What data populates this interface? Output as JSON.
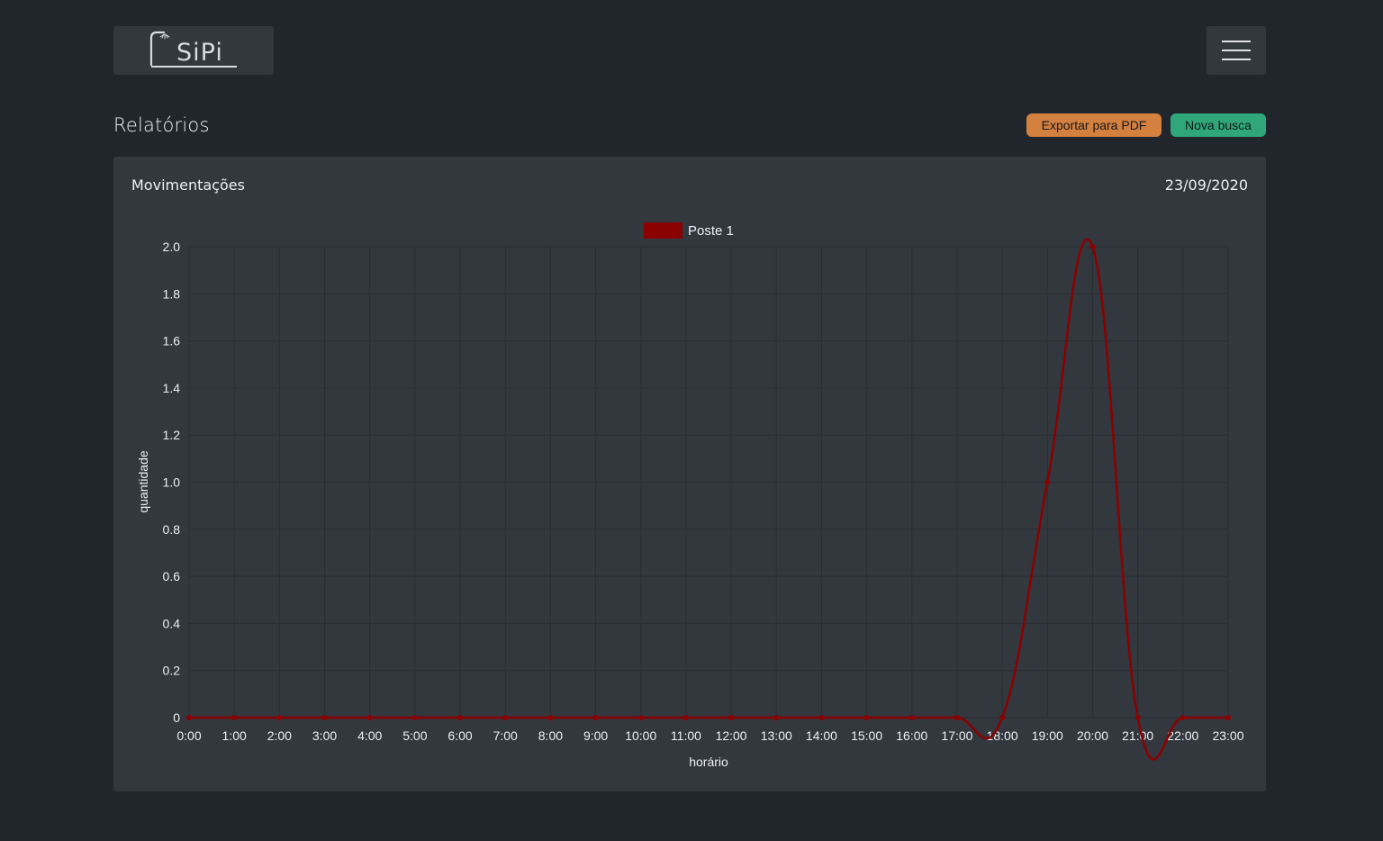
{
  "header": {
    "logo_text": "SiPi",
    "menu_icon": "hamburger-icon"
  },
  "page": {
    "title": "Relatórios"
  },
  "actions": {
    "export_label": "Exportar para PDF",
    "new_search_label": "Nova busca"
  },
  "colors": {
    "background": "#21252c",
    "card": "#33373e",
    "export_button": "#d4803e",
    "new_search_button": "#2fa77a",
    "series": "#8b0000"
  },
  "card": {
    "title": "Movimentações",
    "date": "23/09/2020"
  },
  "chart_data": {
    "type": "line",
    "xlabel": "horário",
    "ylabel": "quantidade",
    "ylim": [
      0,
      2.0
    ],
    "yticks": [
      "0",
      "0.2",
      "0.4",
      "0.6",
      "0.8",
      "1.0",
      "1.2",
      "1.4",
      "1.6",
      "1.8",
      "2.0"
    ],
    "categories": [
      "0:00",
      "1:00",
      "2:00",
      "3:00",
      "4:00",
      "5:00",
      "6:00",
      "7:00",
      "8:00",
      "9:00",
      "10:00",
      "11:00",
      "12:00",
      "13:00",
      "14:00",
      "15:00",
      "16:00",
      "17:00",
      "18:00",
      "19:00",
      "20:00",
      "21:00",
      "22:00",
      "23:00"
    ],
    "series": [
      {
        "name": "Poste 1",
        "color": "#8b0000",
        "values": [
          0,
          0,
          0,
          0,
          0,
          0,
          0,
          0,
          0,
          0,
          0,
          0,
          0,
          0,
          0,
          0,
          0,
          0,
          0,
          1,
          2,
          0,
          0,
          0
        ]
      }
    ],
    "legend": "top",
    "grid": true,
    "smooth": true
  }
}
